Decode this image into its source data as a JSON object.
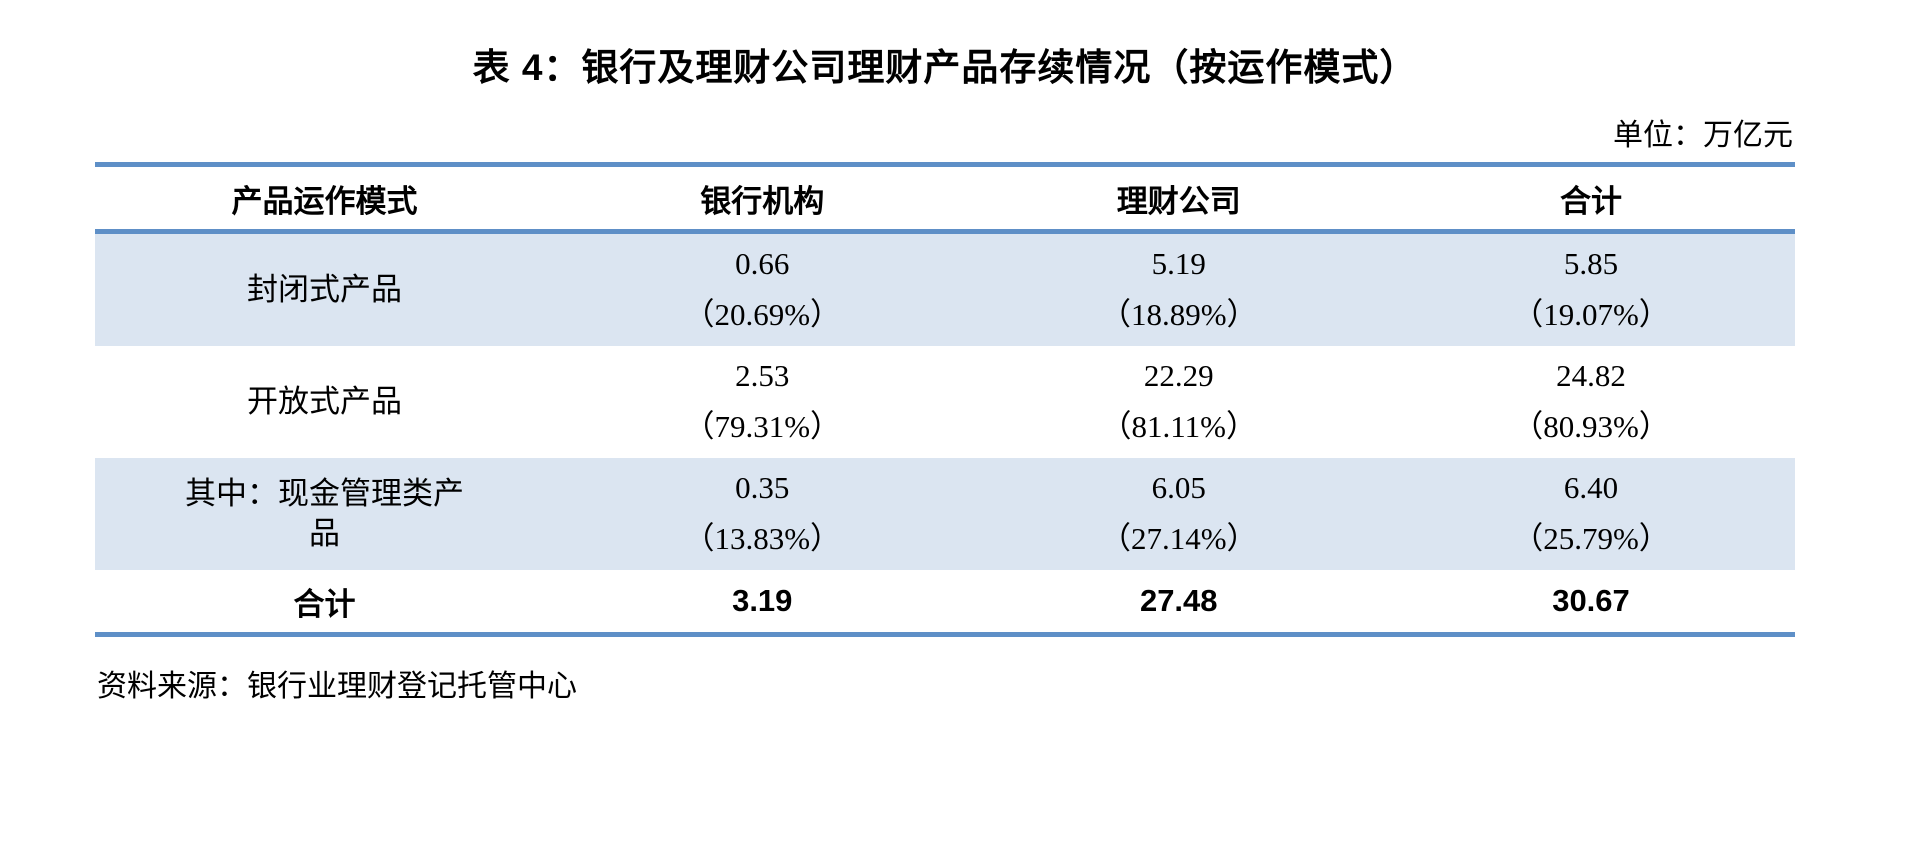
{
  "page": {
    "title": "表 4：银行及理财公司理财产品存续情况（按运作模式）",
    "unit_label": "单位：万亿元",
    "source": "资料来源：银行业理财登记托管中心"
  },
  "table": {
    "columns": [
      "产品运作模式",
      "银行机构",
      "理财公司",
      "合计"
    ],
    "rows": [
      {
        "label": "封闭式产品",
        "cells": [
          {
            "value": "0.66",
            "pct": "（20.69%）"
          },
          {
            "value": "5.19",
            "pct": "（18.89%）"
          },
          {
            "value": "5.85",
            "pct": "（19.07%）"
          }
        ]
      },
      {
        "label": "开放式产品",
        "cells": [
          {
            "value": "2.53",
            "pct": "（79.31%）"
          },
          {
            "value": "22.29",
            "pct": "（81.11%）"
          },
          {
            "value": "24.82",
            "pct": "（80.93%）"
          }
        ]
      },
      {
        "label": "其中：现金管理类产品",
        "cells": [
          {
            "value": "0.35",
            "pct": "（13.83%）"
          },
          {
            "value": "6.05",
            "pct": "（27.14%）"
          },
          {
            "value": "6.40",
            "pct": "（25.79%）"
          }
        ]
      }
    ],
    "total_row": {
      "label": "合计",
      "values": [
        "3.19",
        "27.48",
        "30.67"
      ]
    }
  },
  "colors": {
    "band_blue": "#dbe5f1",
    "rule_blue": "#5e8fc7",
    "text": "#000000",
    "background": "#ffffff"
  }
}
